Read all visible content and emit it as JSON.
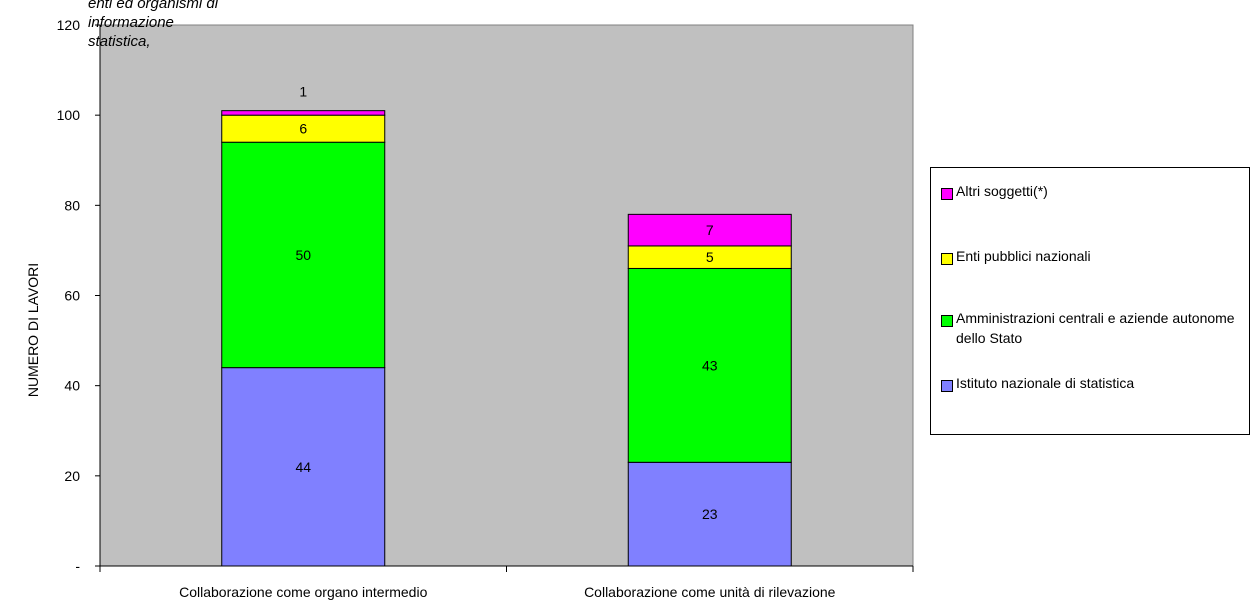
{
  "annotation": "enti ed organismi di informazione statistica,",
  "chart_data": {
    "type": "bar",
    "stacked": true,
    "categories": [
      "Collaborazione come organo intermedio",
      "Collaborazione come unità di rilevazione"
    ],
    "series": [
      {
        "name": "Istituto nazionale di statistica",
        "values": [
          44,
          23
        ],
        "color": "#8080ff"
      },
      {
        "name": "Amministrazioni centrali e aziende autonome dello Stato",
        "values": [
          50,
          43
        ],
        "color": "#00ff00"
      },
      {
        "name": "Enti pubblici nazionali",
        "values": [
          6,
          5
        ],
        "color": "#ffff00"
      },
      {
        "name": "Altri soggetti(*)",
        "values": [
          1,
          7
        ],
        "color": "#ff00ff"
      }
    ],
    "data_labels": [
      [
        "44",
        "50",
        "6",
        "1"
      ],
      [
        "23",
        "43",
        "5",
        "7"
      ]
    ],
    "ylabel": "NUMERO DI LAVORI",
    "xlabel": "",
    "ylim": [
      0,
      120
    ],
    "yticks": [
      0,
      20,
      40,
      60,
      80,
      100,
      120
    ],
    "ytick_labels": [
      "-",
      "20",
      "40",
      "60",
      "80",
      "100",
      "120"
    ],
    "plot_background": "#c0c0c0",
    "grid": false,
    "legend_position": "right",
    "legend_order": [
      3,
      2,
      1,
      0
    ]
  }
}
